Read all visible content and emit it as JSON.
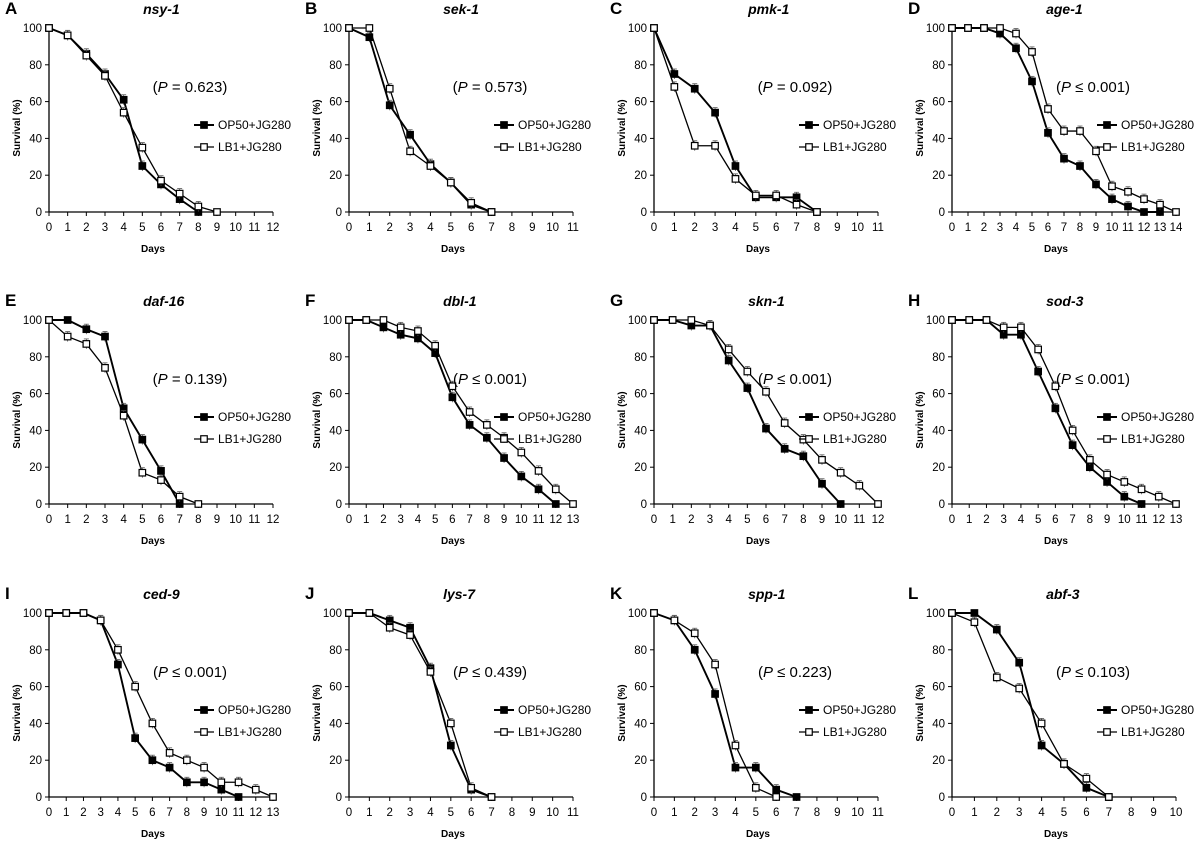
{
  "figure": {
    "x_label": "Days",
    "y_label": "Survival (%)",
    "series_names": [
      "OP50+JG280",
      "LB1+JG280"
    ],
    "series_styles": [
      "filled-square",
      "open-square"
    ],
    "line_color": "#000000"
  },
  "chart_data": [
    {
      "type": "line",
      "panel": "A",
      "title": "nsy-1",
      "p_text": "(P = 0.623)",
      "p_parts": [
        "(",
        "P",
        " = 0.623)"
      ],
      "x_ticks": [
        "0",
        "1",
        "2",
        "3",
        "4",
        "5",
        "6",
        "7",
        "8",
        "9",
        "10",
        "11",
        "12"
      ],
      "xlim": [
        0,
        12
      ],
      "ylim": [
        0,
        100
      ],
      "y_ticks": [
        "0",
        "20",
        "40",
        "60",
        "80",
        "100"
      ],
      "series": [
        {
          "name": "OP50+JG280",
          "x": [
            0,
            1,
            2,
            3,
            4,
            5,
            6,
            7,
            8
          ],
          "values": [
            100,
            96,
            86,
            75,
            61,
            25,
            15,
            7,
            0
          ]
        },
        {
          "name": "LB1+JG280",
          "x": [
            0,
            1,
            2,
            3,
            4,
            5,
            6,
            7,
            8,
            9
          ],
          "values": [
            100,
            96,
            85,
            74,
            54,
            35,
            17,
            10,
            3,
            0
          ]
        }
      ]
    },
    {
      "type": "line",
      "panel": "B",
      "title": "sek-1",
      "p_text": "(P = 0.573)",
      "p_parts": [
        "(",
        "P",
        " = 0.573)"
      ],
      "x_ticks": [
        "0",
        "1",
        "2",
        "3",
        "4",
        "5",
        "6",
        "7",
        "8",
        "9",
        "10",
        "11"
      ],
      "xlim": [
        0,
        11
      ],
      "ylim": [
        0,
        100
      ],
      "y_ticks": [
        "0",
        "20",
        "40",
        "60",
        "80",
        "100"
      ],
      "series": [
        {
          "name": "OP50+JG280",
          "x": [
            0,
            1,
            2,
            3,
            4,
            5,
            6,
            7
          ],
          "values": [
            100,
            95,
            58,
            42,
            26,
            16,
            4,
            0
          ]
        },
        {
          "name": "LB1+JG280",
          "x": [
            0,
            1,
            2,
            3,
            4,
            5,
            6,
            7
          ],
          "values": [
            100,
            100,
            67,
            33,
            25,
            16,
            5,
            0
          ]
        }
      ]
    },
    {
      "type": "line",
      "panel": "C",
      "title": "pmk-1",
      "p_text": "(P = 0.092)",
      "p_parts": [
        "(",
        "P",
        " = 0.092)"
      ],
      "x_ticks": [
        "0",
        "1",
        "2",
        "3",
        "4",
        "5",
        "6",
        "7",
        "8",
        "9",
        "10",
        "11"
      ],
      "xlim": [
        0,
        11
      ],
      "ylim": [
        0,
        100
      ],
      "y_ticks": [
        "0",
        "20",
        "40",
        "60",
        "80",
        "100"
      ],
      "series": [
        {
          "name": "OP50+JG280",
          "x": [
            0,
            1,
            2,
            3,
            4,
            5,
            6,
            7,
            8
          ],
          "values": [
            100,
            75,
            67,
            54,
            25,
            8,
            8,
            8,
            0
          ]
        },
        {
          "name": "LB1+JG280",
          "x": [
            0,
            1,
            2,
            3,
            4,
            5,
            6,
            7,
            8
          ],
          "values": [
            100,
            68,
            36,
            36,
            18,
            9,
            9,
            4,
            0
          ]
        }
      ]
    },
    {
      "type": "line",
      "panel": "D",
      "title": "age-1",
      "p_text": "(P ≤ 0.001)",
      "p_parts": [
        "(",
        "P",
        " ≤ 0.001)"
      ],
      "x_ticks": [
        "0",
        "1",
        "2",
        "3",
        "4",
        "5",
        "6",
        "7",
        "8",
        "9",
        "10",
        "11",
        "12",
        "13",
        "14"
      ],
      "xlim": [
        0,
        14
      ],
      "ylim": [
        0,
        100
      ],
      "y_ticks": [
        "0",
        "20",
        "40",
        "60",
        "80",
        "100"
      ],
      "series": [
        {
          "name": "OP50+JG280",
          "x": [
            0,
            1,
            2,
            3,
            4,
            5,
            6,
            7,
            8,
            9,
            10,
            11,
            12,
            13
          ],
          "values": [
            100,
            100,
            100,
            97,
            89,
            71,
            43,
            29,
            25,
            15,
            7,
            3,
            0,
            0
          ]
        },
        {
          "name": "LB1+JG280",
          "x": [
            0,
            1,
            2,
            3,
            4,
            5,
            6,
            7,
            8,
            9,
            10,
            11,
            12,
            13,
            14
          ],
          "values": [
            100,
            100,
            100,
            100,
            97,
            87,
            56,
            44,
            44,
            33,
            14,
            11,
            7,
            4,
            0
          ]
        }
      ]
    },
    {
      "type": "line",
      "panel": "E",
      "title": "daf-16",
      "p_text": "(P = 0.139)",
      "p_parts": [
        "(",
        "P",
        " = 0.139)"
      ],
      "x_ticks": [
        "0",
        "1",
        "2",
        "3",
        "4",
        "5",
        "6",
        "7",
        "8",
        "9",
        "10",
        "11",
        "12"
      ],
      "xlim": [
        0,
        12
      ],
      "ylim": [
        0,
        100
      ],
      "y_ticks": [
        "0",
        "20",
        "40",
        "60",
        "80",
        "100"
      ],
      "series": [
        {
          "name": "OP50+JG280",
          "x": [
            0,
            1,
            2,
            3,
            4,
            5,
            6,
            7
          ],
          "values": [
            100,
            100,
            95,
            91,
            52,
            35,
            18,
            0
          ]
        },
        {
          "name": "LB1+JG280",
          "x": [
            0,
            1,
            2,
            3,
            4,
            5,
            6,
            7,
            8
          ],
          "values": [
            100,
            91,
            87,
            74,
            48,
            17,
            13,
            4,
            0
          ]
        }
      ]
    },
    {
      "type": "line",
      "panel": "F",
      "title": "dbl-1",
      "p_text": "(P ≤ 0.001)",
      "p_parts": [
        "(",
        "P",
        " ≤ 0.001)"
      ],
      "x_ticks": [
        "0",
        "1",
        "2",
        "3",
        "4",
        "5",
        "6",
        "7",
        "8",
        "9",
        "10",
        "11",
        "12",
        "13"
      ],
      "xlim": [
        0,
        13
      ],
      "ylim": [
        0,
        100
      ],
      "y_ticks": [
        "0",
        "20",
        "40",
        "60",
        "80",
        "100"
      ],
      "series": [
        {
          "name": "OP50+JG280",
          "x": [
            0,
            1,
            2,
            3,
            4,
            5,
            6,
            7,
            8,
            9,
            10,
            11,
            12
          ],
          "values": [
            100,
            100,
            96,
            92,
            90,
            82,
            58,
            43,
            36,
            25,
            15,
            8,
            0
          ]
        },
        {
          "name": "LB1+JG280",
          "x": [
            0,
            1,
            2,
            3,
            4,
            5,
            6,
            7,
            8,
            9,
            10,
            11,
            12,
            13
          ],
          "values": [
            100,
            100,
            100,
            96,
            94,
            86,
            64,
            50,
            43,
            36,
            28,
            18,
            8,
            0
          ]
        }
      ]
    },
    {
      "type": "line",
      "panel": "G",
      "title": "skn-1",
      "p_text": "(P ≤ 0.001)",
      "p_parts": [
        "(",
        "P",
        " ≤ 0.001)"
      ],
      "x_ticks": [
        "0",
        "1",
        "2",
        "3",
        "4",
        "5",
        "6",
        "7",
        "8",
        "9",
        "10",
        "11",
        "12"
      ],
      "xlim": [
        0,
        12
      ],
      "ylim": [
        0,
        100
      ],
      "y_ticks": [
        "0",
        "20",
        "40",
        "60",
        "80",
        "100"
      ],
      "series": [
        {
          "name": "OP50+JG280",
          "x": [
            0,
            1,
            2,
            3,
            4,
            5,
            6,
            7,
            8,
            9,
            10
          ],
          "values": [
            100,
            100,
            97,
            97,
            78,
            63,
            41,
            30,
            26,
            11,
            0
          ]
        },
        {
          "name": "LB1+JG280",
          "x": [
            0,
            1,
            2,
            3,
            4,
            5,
            6,
            7,
            8,
            9,
            10,
            11,
            12
          ],
          "values": [
            100,
            100,
            100,
            97,
            84,
            72,
            61,
            44,
            35,
            24,
            17,
            10,
            0
          ]
        }
      ]
    },
    {
      "type": "line",
      "panel": "H",
      "title": "sod-3",
      "p_text": "(P ≤ 0.001)",
      "p_parts": [
        "(",
        "P",
        " ≤ 0.001)"
      ],
      "x_ticks": [
        "0",
        "1",
        "2",
        "3",
        "4",
        "5",
        "6",
        "7",
        "8",
        "9",
        "10",
        "11",
        "12",
        "13"
      ],
      "xlim": [
        0,
        13
      ],
      "ylim": [
        0,
        100
      ],
      "y_ticks": [
        "0",
        "20",
        "40",
        "60",
        "80",
        "100"
      ],
      "series": [
        {
          "name": "OP50+JG280",
          "x": [
            0,
            1,
            2,
            3,
            4,
            5,
            6,
            7,
            8,
            9,
            10,
            11
          ],
          "values": [
            100,
            100,
            100,
            92,
            92,
            72,
            52,
            32,
            20,
            12,
            4,
            0
          ]
        },
        {
          "name": "LB1+JG280",
          "x": [
            0,
            1,
            2,
            3,
            4,
            5,
            6,
            7,
            8,
            9,
            10,
            11,
            12,
            13
          ],
          "values": [
            100,
            100,
            100,
            96,
            96,
            84,
            64,
            40,
            24,
            16,
            12,
            8,
            4,
            0
          ]
        }
      ]
    },
    {
      "type": "line",
      "panel": "I",
      "title": "ced-9",
      "p_text": "(P ≤ 0.001)",
      "p_parts": [
        "(",
        "P",
        " ≤ 0.001)"
      ],
      "x_ticks": [
        "0",
        "1",
        "2",
        "3",
        "4",
        "5",
        "6",
        "7",
        "8",
        "9",
        "10",
        "11",
        "12",
        "13"
      ],
      "xlim": [
        0,
        13
      ],
      "ylim": [
        0,
        100
      ],
      "y_ticks": [
        "0",
        "20",
        "40",
        "60",
        "80",
        "100"
      ],
      "series": [
        {
          "name": "OP50+JG280",
          "x": [
            0,
            1,
            2,
            3,
            4,
            5,
            6,
            7,
            8,
            9,
            10,
            11
          ],
          "values": [
            100,
            100,
            100,
            96,
            72,
            32,
            20,
            16,
            8,
            8,
            4,
            0
          ]
        },
        {
          "name": "LB1+JG280",
          "x": [
            0,
            1,
            2,
            3,
            4,
            5,
            6,
            7,
            8,
            9,
            10,
            11,
            12,
            13
          ],
          "values": [
            100,
            100,
            100,
            96,
            80,
            60,
            40,
            24,
            20,
            16,
            8,
            8,
            4,
            0
          ]
        }
      ]
    },
    {
      "type": "line",
      "panel": "J",
      "title": "lys-7",
      "p_text": "(P ≤ 0.439)",
      "p_parts": [
        "(",
        "P",
        " ≤ 0.439)"
      ],
      "x_ticks": [
        "0",
        "1",
        "2",
        "3",
        "4",
        "5",
        "6",
        "7",
        "8",
        "9",
        "10",
        "11"
      ],
      "xlim": [
        0,
        11
      ],
      "ylim": [
        0,
        100
      ],
      "y_ticks": [
        "0",
        "20",
        "40",
        "60",
        "80",
        "100"
      ],
      "series": [
        {
          "name": "OP50+JG280",
          "x": [
            0,
            1,
            2,
            3,
            4,
            5,
            6,
            7
          ],
          "values": [
            100,
            100,
            96,
            92,
            70,
            28,
            4,
            0
          ]
        },
        {
          "name": "LB1+JG280",
          "x": [
            0,
            1,
            2,
            3,
            4,
            5,
            6,
            7
          ],
          "values": [
            100,
            100,
            92,
            88,
            68,
            40,
            5,
            0
          ]
        }
      ]
    },
    {
      "type": "line",
      "panel": "K",
      "title": "spp-1",
      "p_text": "(P ≤ 0.223)",
      "p_parts": [
        "(",
        "P",
        " ≤ 0.223)"
      ],
      "x_ticks": [
        "0",
        "1",
        "2",
        "3",
        "4",
        "5",
        "6",
        "7",
        "8",
        "9",
        "10",
        "11"
      ],
      "xlim": [
        0,
        11
      ],
      "ylim": [
        0,
        100
      ],
      "y_ticks": [
        "0",
        "20",
        "40",
        "60",
        "80",
        "100"
      ],
      "series": [
        {
          "name": "OP50+JG280",
          "x": [
            0,
            1,
            2,
            3,
            4,
            5,
            6,
            7
          ],
          "values": [
            100,
            96,
            80,
            56,
            16,
            16,
            4,
            0
          ]
        },
        {
          "name": "LB1+JG280",
          "x": [
            0,
            1,
            2,
            3,
            4,
            5,
            6
          ],
          "values": [
            100,
            96,
            89,
            72,
            28,
            5,
            0
          ]
        }
      ]
    },
    {
      "type": "line",
      "panel": "L",
      "title": "abf-3",
      "p_text": "(P ≤ 0.103)",
      "p_parts": [
        "(",
        "P",
        " ≤ 0.103)"
      ],
      "x_ticks": [
        "0",
        "1",
        "2",
        "3",
        "4",
        "5",
        "6",
        "7",
        "8",
        "9",
        "10"
      ],
      "xlim": [
        0,
        10
      ],
      "ylim": [
        0,
        100
      ],
      "y_ticks": [
        "0",
        "20",
        "40",
        "60",
        "80",
        "100"
      ],
      "series": [
        {
          "name": "OP50+JG280",
          "x": [
            0,
            1,
            2,
            3,
            4,
            5,
            6,
            7
          ],
          "values": [
            100,
            100,
            91,
            73,
            28,
            18,
            5,
            0
          ]
        },
        {
          "name": "LB1+JG280",
          "x": [
            0,
            1,
            2,
            3,
            4,
            5,
            6,
            7
          ],
          "values": [
            100,
            95,
            65,
            59,
            40,
            18,
            10,
            0
          ]
        }
      ]
    }
  ]
}
